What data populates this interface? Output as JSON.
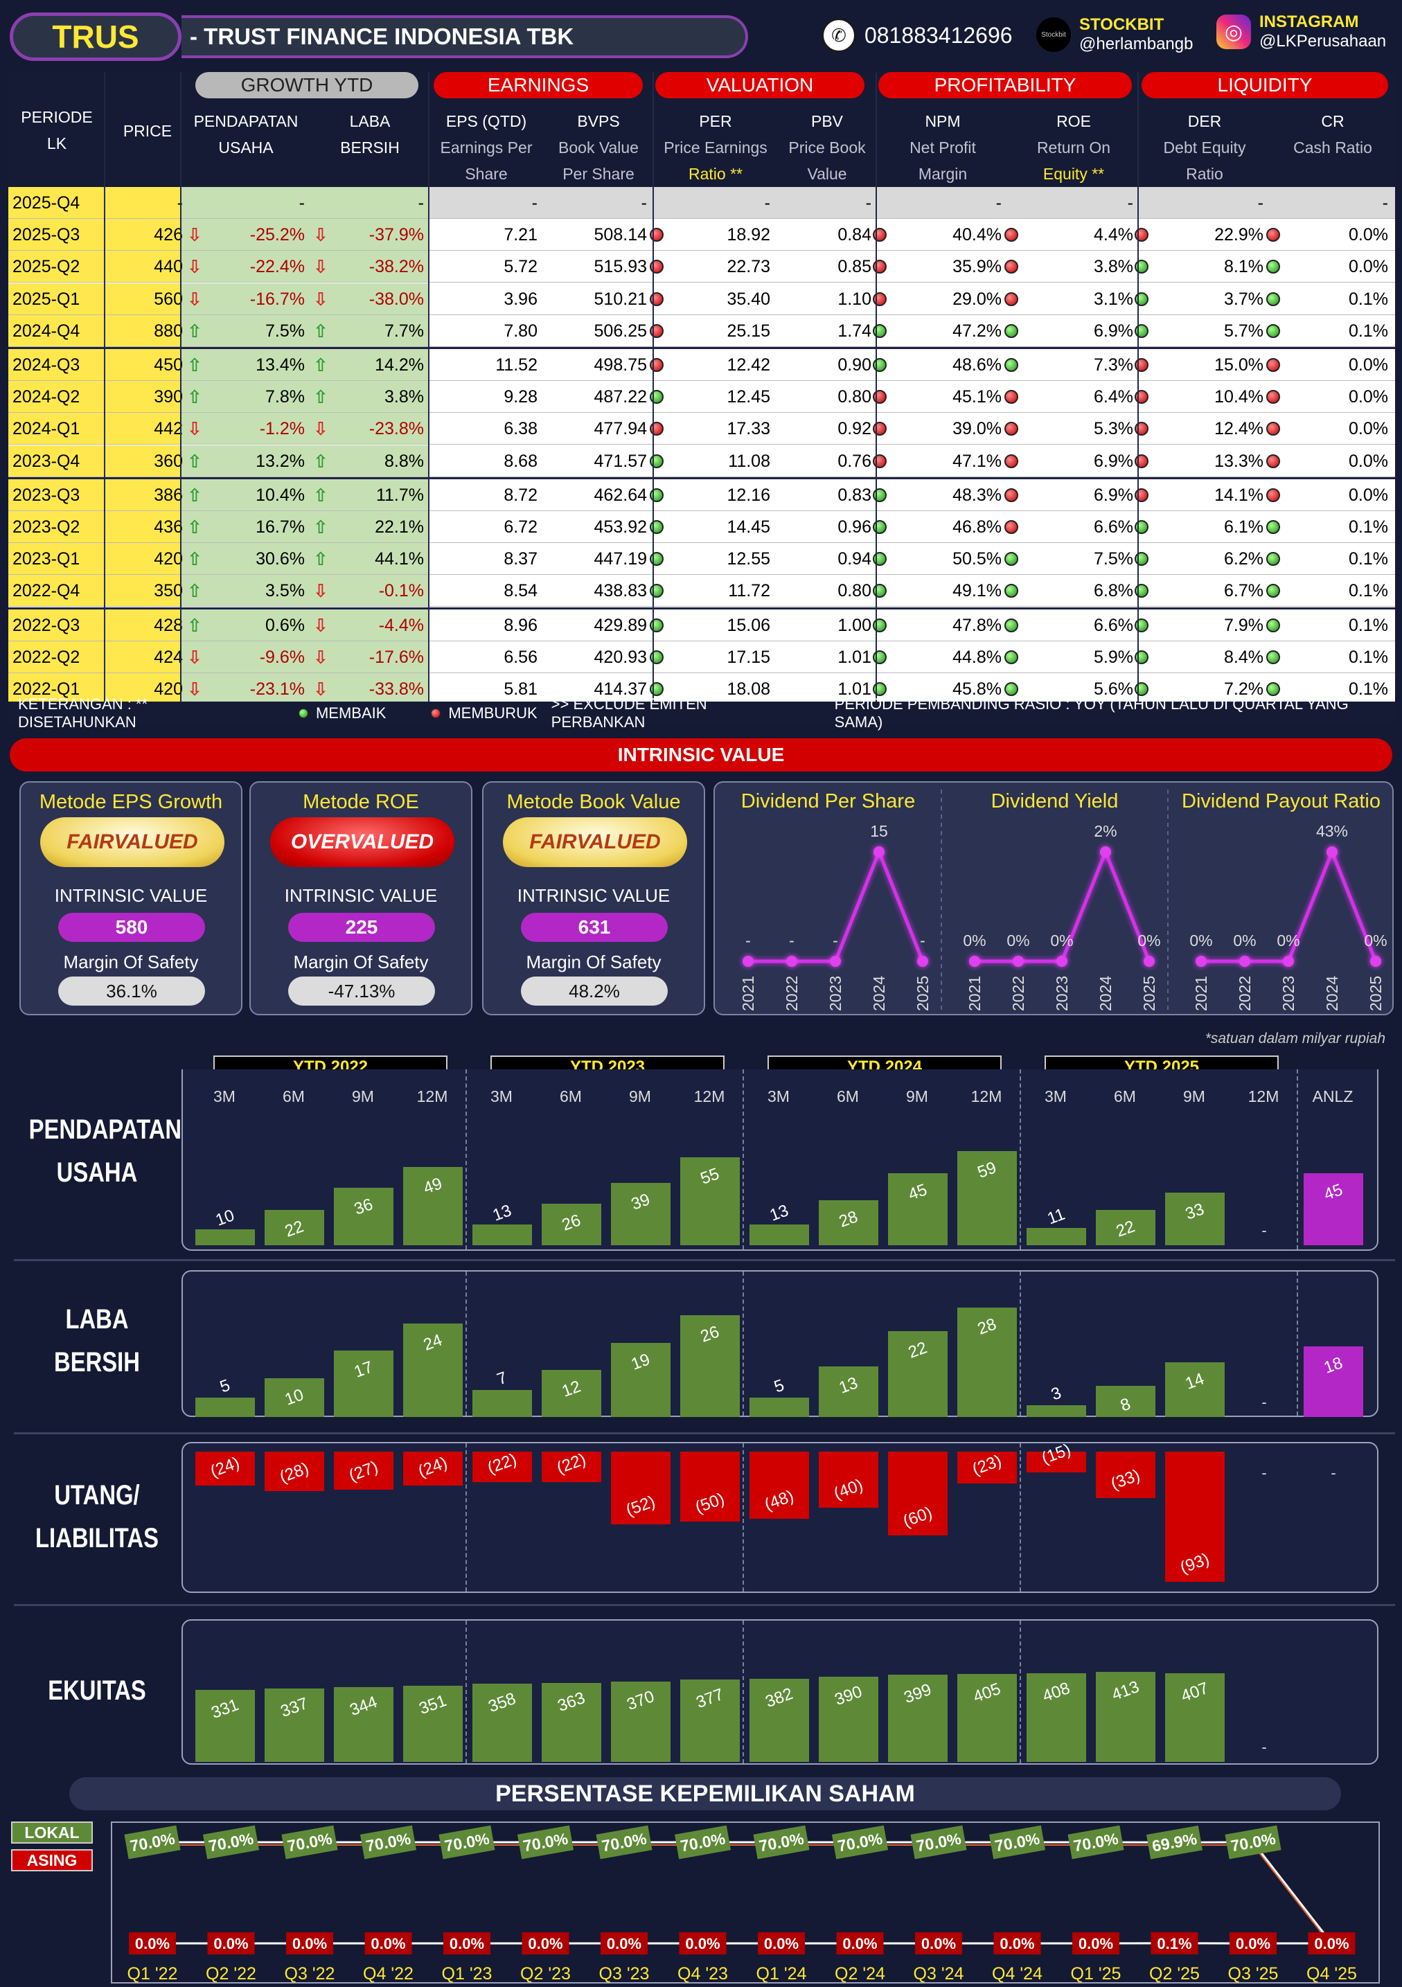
{
  "header": {
    "ticker": "TRUS",
    "company": "- TRUST FINANCE INDONESIA TBK",
    "phone": "081883412696",
    "stockbit_label": "STOCKBIT",
    "stockbit_handle": "@herlambangb",
    "instagram_label": "INSTAGRAM",
    "instagram_handle": "@LKPerusahaan",
    "stockbit_logo_text": "Stockbit"
  },
  "table": {
    "col_periode": [
      "PERIODE",
      "LK"
    ],
    "col_price": "PRICE",
    "groups": {
      "growth": "GROWTH YTD",
      "earnings": "EARNINGS",
      "valuation": "VALUATION",
      "profitability": "PROFITABILITY",
      "liquidity": "LIQUIDITY"
    },
    "cols": {
      "pendapatan": [
        "PENDAPATAN",
        "USAHA"
      ],
      "laba": [
        "LABA",
        "BERSIH"
      ],
      "eps": [
        "EPS (QTD)",
        "Earnings Per",
        "Share"
      ],
      "bvps": [
        "BVPS",
        "Book Value",
        "Per Share"
      ],
      "per": [
        "PER",
        "Price Earnings",
        "Ratio **"
      ],
      "pbv": [
        "PBV",
        "Price Book",
        "Value"
      ],
      "npm": [
        "NPM",
        "Net Profit",
        "Margin"
      ],
      "roe": [
        "ROE",
        "Return On",
        "Equity **"
      ],
      "der": [
        "DER",
        "Debt Equity",
        "Ratio"
      ],
      "cr": [
        "CR",
        "Cash Ratio"
      ]
    },
    "rows": [
      {
        "p": "2025-Q4",
        "price": "-",
        "g1": "-",
        "g1d": "",
        "g2": "-",
        "g2d": "",
        "eps": "-",
        "bvps": "-",
        "per": "-",
        "perd": "",
        "pbv": "-",
        "npm": "-",
        "npmd": "",
        "roe": "-",
        "roed": "",
        "der": "-",
        "derd": "",
        "cr": "-",
        "crd": ""
      },
      {
        "p": "2025-Q3",
        "price": "426",
        "g1": "-25.2%",
        "g1d": "down",
        "g2": "-37.9%",
        "g2d": "down",
        "eps": "7.21",
        "bvps": "508.14",
        "per": "18.92",
        "perd": "r",
        "pbv": "0.84",
        "npm": "40.4%",
        "npmd": "r",
        "roe": "4.4%",
        "roed": "r",
        "der": "22.9%",
        "derd": "r",
        "cr": "0.0%",
        "crd": "r"
      },
      {
        "p": "2025-Q2",
        "price": "440",
        "g1": "-22.4%",
        "g1d": "down",
        "g2": "-38.2%",
        "g2d": "down",
        "eps": "5.72",
        "bvps": "515.93",
        "per": "22.73",
        "perd": "r",
        "pbv": "0.85",
        "npm": "35.9%",
        "npmd": "r",
        "roe": "3.8%",
        "roed": "r",
        "der": "8.1%",
        "derd": "g",
        "cr": "0.0%",
        "crd": "g"
      },
      {
        "p": "2025-Q1",
        "price": "560",
        "g1": "-16.7%",
        "g1d": "down",
        "g2": "-38.0%",
        "g2d": "down",
        "eps": "3.96",
        "bvps": "510.21",
        "per": "35.40",
        "perd": "r",
        "pbv": "1.10",
        "npm": "29.0%",
        "npmd": "r",
        "roe": "3.1%",
        "roed": "r",
        "der": "3.7%",
        "derd": "g",
        "cr": "0.1%",
        "crd": "g"
      },
      {
        "p": "2024-Q4",
        "price": "880",
        "g1": "7.5%",
        "g1d": "up",
        "g2": "7.7%",
        "g2d": "up",
        "eps": "7.80",
        "bvps": "506.25",
        "per": "25.15",
        "perd": "r",
        "pbv": "1.74",
        "npm": "47.2%",
        "npmd": "g",
        "roe": "6.9%",
        "roed": "g",
        "der": "5.7%",
        "derd": "g",
        "cr": "0.1%",
        "crd": "g"
      },
      {
        "p": "2024-Q3",
        "price": "450",
        "g1": "13.4%",
        "g1d": "up",
        "g2": "14.2%",
        "g2d": "up",
        "eps": "11.52",
        "bvps": "498.75",
        "per": "12.42",
        "perd": "r",
        "pbv": "0.90",
        "npm": "48.6%",
        "npmd": "g",
        "roe": "7.3%",
        "roed": "g",
        "der": "15.0%",
        "derd": "r",
        "cr": "0.0%",
        "crd": "r"
      },
      {
        "p": "2024-Q2",
        "price": "390",
        "g1": "7.8%",
        "g1d": "up",
        "g2": "3.8%",
        "g2d": "up",
        "eps": "9.28",
        "bvps": "487.22",
        "per": "12.45",
        "perd": "g",
        "pbv": "0.80",
        "npm": "45.1%",
        "npmd": "r",
        "roe": "6.4%",
        "roed": "r",
        "der": "10.4%",
        "derd": "r",
        "cr": "0.0%",
        "crd": "r"
      },
      {
        "p": "2024-Q1",
        "price": "442",
        "g1": "-1.2%",
        "g1d": "down",
        "g2": "-23.8%",
        "g2d": "down",
        "eps": "6.38",
        "bvps": "477.94",
        "per": "17.33",
        "perd": "r",
        "pbv": "0.92",
        "npm": "39.0%",
        "npmd": "r",
        "roe": "5.3%",
        "roed": "r",
        "der": "12.4%",
        "derd": "r",
        "cr": "0.0%",
        "crd": "r"
      },
      {
        "p": "2023-Q4",
        "price": "360",
        "g1": "13.2%",
        "g1d": "up",
        "g2": "8.8%",
        "g2d": "up",
        "eps": "8.68",
        "bvps": "471.57",
        "per": "11.08",
        "perd": "g",
        "pbv": "0.76",
        "npm": "47.1%",
        "npmd": "r",
        "roe": "6.9%",
        "roed": "r",
        "der": "13.3%",
        "derd": "r",
        "cr": "0.0%",
        "crd": "r"
      },
      {
        "p": "2023-Q3",
        "price": "386",
        "g1": "10.4%",
        "g1d": "up",
        "g2": "11.7%",
        "g2d": "up",
        "eps": "8.72",
        "bvps": "462.64",
        "per": "12.16",
        "perd": "g",
        "pbv": "0.83",
        "npm": "48.3%",
        "npmd": "g",
        "roe": "6.9%",
        "roed": "r",
        "der": "14.1%",
        "derd": "r",
        "cr": "0.0%",
        "crd": "r"
      },
      {
        "p": "2023-Q2",
        "price": "436",
        "g1": "16.7%",
        "g1d": "up",
        "g2": "22.1%",
        "g2d": "up",
        "eps": "6.72",
        "bvps": "453.92",
        "per": "14.45",
        "perd": "g",
        "pbv": "0.96",
        "npm": "46.8%",
        "npmd": "g",
        "roe": "6.6%",
        "roed": "r",
        "der": "6.1%",
        "derd": "g",
        "cr": "0.1%",
        "crd": "g"
      },
      {
        "p": "2023-Q1",
        "price": "420",
        "g1": "30.6%",
        "g1d": "up",
        "g2": "44.1%",
        "g2d": "up",
        "eps": "8.37",
        "bvps": "447.19",
        "per": "12.55",
        "perd": "g",
        "pbv": "0.94",
        "npm": "50.5%",
        "npmd": "g",
        "roe": "7.5%",
        "roed": "g",
        "der": "6.2%",
        "derd": "g",
        "cr": "0.1%",
        "crd": "g"
      },
      {
        "p": "2022-Q4",
        "price": "350",
        "g1": "3.5%",
        "g1d": "up",
        "g2": "-0.1%",
        "g2d": "down",
        "eps": "8.54",
        "bvps": "438.83",
        "per": "11.72",
        "perd": "g",
        "pbv": "0.80",
        "npm": "49.1%",
        "npmd": "g",
        "roe": "6.8%",
        "roed": "g",
        "der": "6.7%",
        "derd": "g",
        "cr": "0.1%",
        "crd": "g"
      },
      {
        "p": "2022-Q3",
        "price": "428",
        "g1": "0.6%",
        "g1d": "up",
        "g2": "-4.4%",
        "g2d": "down",
        "eps": "8.96",
        "bvps": "429.89",
        "per": "15.06",
        "perd": "g",
        "pbv": "1.00",
        "npm": "47.8%",
        "npmd": "g",
        "roe": "6.6%",
        "roed": "g",
        "der": "7.9%",
        "derd": "g",
        "cr": "0.1%",
        "crd": "g"
      },
      {
        "p": "2022-Q2",
        "price": "424",
        "g1": "-9.6%",
        "g1d": "down",
        "g2": "-17.6%",
        "g2d": "down",
        "eps": "6.56",
        "bvps": "420.93",
        "per": "17.15",
        "perd": "g",
        "pbv": "1.01",
        "npm": "44.8%",
        "npmd": "g",
        "roe": "5.9%",
        "roed": "g",
        "der": "8.4%",
        "derd": "g",
        "cr": "0.1%",
        "crd": "g"
      },
      {
        "p": "2022-Q1",
        "price": "420",
        "g1": "-23.1%",
        "g1d": "down",
        "g2": "-33.8%",
        "g2d": "down",
        "eps": "5.81",
        "bvps": "414.37",
        "per": "18.08",
        "perd": "g",
        "pbv": "1.01",
        "npm": "45.8%",
        "npmd": "g",
        "roe": "5.6%",
        "roed": "g",
        "der": "7.2%",
        "derd": "g",
        "cr": "0.1%",
        "crd": "g"
      }
    ],
    "legend": {
      "keterangan": "KETERANGAN : ** DISETAHUNKAN",
      "membaik": "MEMBAIK",
      "memburuk": "MEMBURUK",
      "exclude": ">> EXCLUDE EMITEN PERBANKAN",
      "pembanding": "PERIODE PEMBANDING RASIO : YOY (TAHUN LALU DI QUARTAL YANG SAMA)"
    }
  },
  "intrinsic": {
    "title": "INTRINSIC VALUE",
    "methods": [
      {
        "title": "Metode EPS Growth",
        "status": "FAIRVALUED",
        "kind": "fair",
        "iv_label": "INTRINSIC VALUE",
        "iv": "580",
        "mos_label": "Margin Of Safety",
        "mos": "36.1%"
      },
      {
        "title": "Metode ROE",
        "status": "OVERVALUED",
        "kind": "over",
        "iv_label": "INTRINSIC VALUE",
        "iv": "225",
        "mos_label": "Margin Of Safety",
        "mos": "-47.13%"
      },
      {
        "title": "Metode Book Value",
        "status": "FAIRVALUED",
        "kind": "fair",
        "iv_label": "INTRINSIC VALUE",
        "iv": "631",
        "mos_label": "Margin Of Safety",
        "mos": "48.2%"
      }
    ],
    "dividends": [
      {
        "title": "Dividend Per Share",
        "years": [
          "2021",
          "2022",
          "2023",
          "2024",
          "2025"
        ],
        "values": [
          0,
          0,
          0,
          15,
          0
        ],
        "labels": [
          "-",
          "-",
          "-",
          "15",
          "-"
        ]
      },
      {
        "title": "Dividend Yield",
        "years": [
          "2021",
          "2022",
          "2023",
          "2024",
          "2025"
        ],
        "values": [
          0,
          0,
          0,
          2,
          0
        ],
        "labels": [
          "0%",
          "0%",
          "0%",
          "2%",
          "0%"
        ]
      },
      {
        "title": "Dividend Payout Ratio",
        "years": [
          "2021",
          "2022",
          "2023",
          "2024",
          "2025"
        ],
        "values": [
          0,
          0,
          0,
          43,
          0
        ],
        "labels": [
          "0%",
          "0%",
          "0%",
          "43%",
          "0%"
        ]
      }
    ],
    "unit_note": "*satuan dalam milyar rupiah"
  },
  "chart_data": [
    {
      "type": "bar",
      "title": "PENDAPATAN USAHA",
      "categories": [
        "3M",
        "6M",
        "9M",
        "12M",
        "3M",
        "6M",
        "9M",
        "12M",
        "3M",
        "6M",
        "9M",
        "12M",
        "3M",
        "6M",
        "9M",
        "12M",
        "ANLZ"
      ],
      "groups": [
        "YTD 2022",
        "YTD 2023",
        "YTD 2024",
        "YTD 2025"
      ],
      "values": [
        10,
        22,
        36,
        49,
        13,
        26,
        39,
        55,
        13,
        28,
        45,
        59,
        11,
        22,
        33,
        null,
        45
      ],
      "labels": [
        "10",
        "22",
        "36",
        "49",
        "13",
        "26",
        "39",
        "55",
        "13",
        "28",
        "45",
        "59",
        "11",
        "22",
        "33",
        "-",
        "45"
      ]
    },
    {
      "type": "bar",
      "title": "LABA BERSIH",
      "categories": [
        "3M",
        "6M",
        "9M",
        "12M",
        "3M",
        "6M",
        "9M",
        "12M",
        "3M",
        "6M",
        "9M",
        "12M",
        "3M",
        "6M",
        "9M",
        "12M",
        "ANLZ"
      ],
      "values": [
        5,
        10,
        17,
        24,
        7,
        12,
        19,
        26,
        5,
        13,
        22,
        28,
        3,
        8,
        14,
        null,
        18
      ],
      "labels": [
        "5",
        "10",
        "17",
        "24",
        "7",
        "12",
        "19",
        "26",
        "5",
        "13",
        "22",
        "28",
        "3",
        "8",
        "14",
        "-",
        "18"
      ]
    },
    {
      "type": "bar",
      "title": "UTANG/ LIABILITAS",
      "values": [
        -24,
        -28,
        -27,
        -24,
        -22,
        -22,
        -52,
        -50,
        -48,
        -40,
        -60,
        -23,
        -15,
        -33,
        -93,
        null,
        null
      ],
      "labels": [
        "(24)",
        "(28)",
        "(27)",
        "(24)",
        "(22)",
        "(22)",
        "(52)",
        "(50)",
        "(48)",
        "(40)",
        "(60)",
        "(23)",
        "(15)",
        "(33)",
        "(93)",
        "-",
        "-"
      ]
    },
    {
      "type": "bar",
      "title": "EKUITAS",
      "values": [
        331,
        337,
        344,
        351,
        358,
        363,
        370,
        377,
        382,
        390,
        399,
        405,
        408,
        413,
        407,
        null
      ],
      "labels": [
        "331",
        "337",
        "344",
        "351",
        "358",
        "363",
        "370",
        "377",
        "382",
        "390",
        "399",
        "405",
        "408",
        "413",
        "407",
        "-"
      ]
    },
    {
      "type": "line",
      "title": "PERSENTASE KEPEMILIKAN SAHAM",
      "x": [
        "Q1 '22",
        "Q2 '22",
        "Q3 '22",
        "Q4 '22",
        "Q1 '23",
        "Q2 '23",
        "Q3 '23",
        "Q4 '23",
        "Q1 '24",
        "Q2 '24",
        "Q3 '24",
        "Q4 '24",
        "Q1 '25",
        "Q2 '25",
        "Q3 '25",
        "Q4 '25"
      ],
      "series": [
        {
          "name": "LOKAL",
          "values": [
            70.0,
            70.0,
            70.0,
            70.0,
            70.0,
            70.0,
            70.0,
            70.0,
            70.0,
            70.0,
            70.0,
            70.0,
            70.0,
            69.9,
            70.0,
            0.0
          ],
          "labels": [
            "70.0%",
            "70.0%",
            "70.0%",
            "70.0%",
            "70.0%",
            "70.0%",
            "70.0%",
            "70.0%",
            "70.0%",
            "70.0%",
            "70.0%",
            "70.0%",
            "70.0%",
            "69.9%",
            "70.0%",
            ""
          ]
        },
        {
          "name": "ASING",
          "values": [
            0.0,
            0.0,
            0.0,
            0.0,
            0.0,
            0.0,
            0.0,
            0.0,
            0.0,
            0.0,
            0.0,
            0.0,
            0.0,
            0.1,
            0.0,
            0.0
          ],
          "labels": [
            "0.0%",
            "0.0%",
            "0.0%",
            "0.0%",
            "0.0%",
            "0.0%",
            "0.0%",
            "0.0%",
            "0.0%",
            "0.0%",
            "0.0%",
            "0.0%",
            "0.0%",
            "0.1%",
            "0.0%",
            "0.0%"
          ]
        }
      ]
    }
  ],
  "row_titles": {
    "pendapatan": [
      "PENDAPATAN",
      "USAHA"
    ],
    "laba": [
      "LABA",
      "BERSIH"
    ],
    "utang": [
      "UTANG/",
      "LIABILITAS"
    ],
    "ekuitas": [
      "EKUITAS"
    ]
  },
  "colors": {
    "green_bar": "#5e8a38",
    "red_bar": "#d00000",
    "purple": "#b327c6",
    "yellow": "#ffe833"
  }
}
